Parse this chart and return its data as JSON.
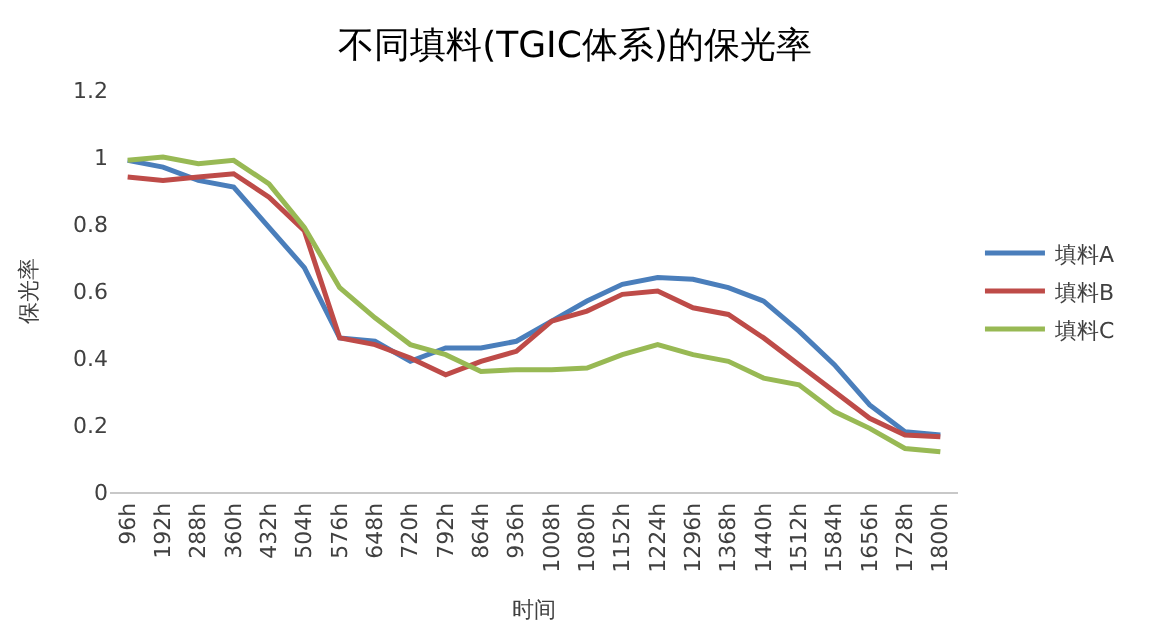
{
  "chart_data": {
    "type": "line",
    "title": "不同填料(TGIC体系)的保光率",
    "xlabel": "时间",
    "ylabel": "保光率",
    "categories": [
      "96h",
      "192h",
      "288h",
      "360h",
      "432h",
      "504h",
      "576h",
      "648h",
      "720h",
      "792h",
      "864h",
      "936h",
      "1008h",
      "1080h",
      "1152h",
      "1224h",
      "1296h",
      "1368h",
      "1440h",
      "1512h",
      "1584h",
      "1656h",
      "1728h",
      "1800h"
    ],
    "series": [
      {
        "name": "填料A",
        "color": "#4a7ebb",
        "values": [
          0.99,
          0.97,
          0.93,
          0.91,
          0.79,
          0.67,
          0.46,
          0.45,
          0.39,
          0.43,
          0.43,
          0.45,
          0.51,
          0.57,
          0.62,
          0.64,
          0.635,
          0.61,
          0.57,
          0.48,
          0.38,
          0.26,
          0.18,
          0.17
        ]
      },
      {
        "name": "填料B",
        "color": "#be4b48",
        "values": [
          0.94,
          0.93,
          0.94,
          0.95,
          0.88,
          0.78,
          0.46,
          0.44,
          0.4,
          0.35,
          0.39,
          0.42,
          0.51,
          0.54,
          0.59,
          0.6,
          0.55,
          0.53,
          0.46,
          0.38,
          0.3,
          0.22,
          0.17,
          0.165
        ]
      },
      {
        "name": "填料C",
        "color": "#98b954",
        "values": [
          0.99,
          1.0,
          0.98,
          0.99,
          0.92,
          0.79,
          0.61,
          0.52,
          0.44,
          0.41,
          0.36,
          0.365,
          0.365,
          0.37,
          0.41,
          0.44,
          0.41,
          0.39,
          0.34,
          0.32,
          0.24,
          0.19,
          0.13,
          0.12
        ]
      }
    ],
    "ylim": [
      0,
      1.2
    ],
    "yticks": [
      0,
      0.2,
      0.4,
      0.6,
      0.8,
      1,
      1.2
    ],
    "grid": false,
    "legend": "right",
    "marker": "none",
    "line_style": "solid"
  }
}
